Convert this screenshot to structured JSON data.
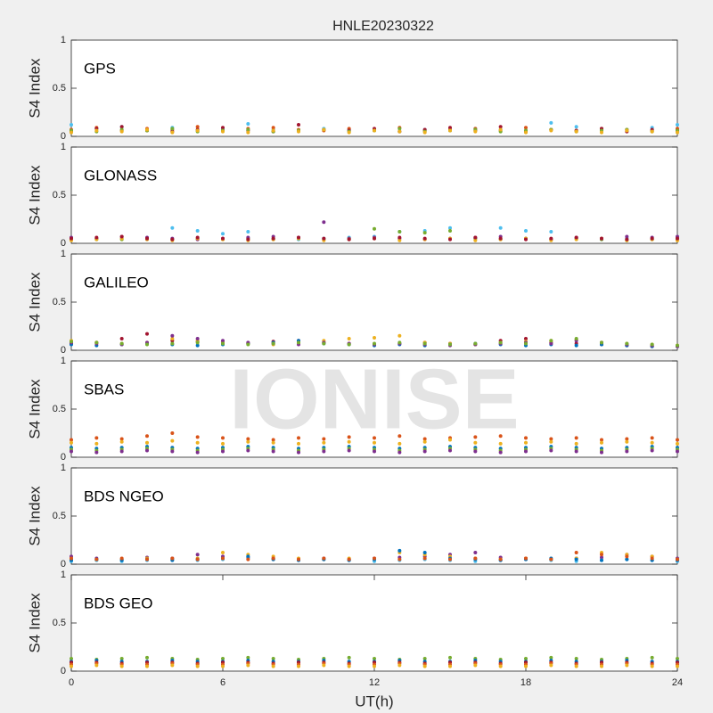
{
  "chart_data": [
    {
      "type": "scatter",
      "title": "HNLE20230322",
      "annotation": "GPS",
      "ylabel": "S4 Index",
      "x": [
        0,
        1,
        2,
        3,
        4,
        5,
        6,
        7,
        8,
        9,
        10,
        11,
        12,
        13,
        14,
        15,
        16,
        17,
        18,
        19,
        20,
        21,
        22,
        23,
        24
      ],
      "xlim": [
        0,
        24
      ],
      "ylim": [
        0,
        1
      ],
      "yticks": [
        0,
        0.5,
        1
      ],
      "series": [
        {
          "color": "#4DBEEE",
          "values": [
            0.12,
            0.08,
            0.1,
            0.07,
            0.09,
            0.06,
            0.08,
            0.13,
            0.07,
            0.06,
            0.08,
            0.07,
            0.06,
            0.05,
            0.07,
            0.06,
            0.08,
            0.07,
            0.06,
            0.14,
            0.1,
            0.08,
            0.07,
            0.09,
            0.12
          ]
        },
        {
          "color": "#D95319",
          "values": [
            0.07,
            0.09,
            0.06,
            0.08,
            0.07,
            0.1,
            0.06,
            0.08,
            0.09,
            0.07,
            0.06,
            0.08,
            0.07,
            0.09,
            0.06,
            0.07,
            0.08,
            0.06,
            0.09,
            0.07,
            0.06,
            0.08,
            0.07,
            0.06,
            0.08
          ]
        },
        {
          "color": "#A2142F",
          "values": [
            0.05,
            0.08,
            0.1,
            0.06,
            0.05,
            0.07,
            0.09,
            0.06,
            0.05,
            0.12,
            0.07,
            0.06,
            0.08,
            0.05,
            0.07,
            0.09,
            0.06,
            0.1,
            0.05,
            0.07,
            0.06,
            0.08,
            0.05,
            0.07,
            0.06
          ]
        },
        {
          "color": "#77AC30",
          "values": [
            0.06,
            0.05,
            0.07,
            0.06,
            0.08,
            0.05,
            0.06,
            0.07,
            0.05,
            0.06,
            0.07,
            0.05,
            0.06,
            0.08,
            0.05,
            0.06,
            0.07,
            0.05,
            0.06,
            0.07,
            0.05,
            0.06,
            0.07,
            0.05,
            0.06
          ]
        },
        {
          "color": "#EDB120",
          "values": [
            0.04,
            0.06,
            0.05,
            0.07,
            0.04,
            0.06,
            0.05,
            0.04,
            0.06,
            0.05,
            0.07,
            0.04,
            0.06,
            0.05,
            0.04,
            0.06,
            0.05,
            0.07,
            0.04,
            0.06,
            0.05,
            0.04,
            0.06,
            0.05,
            0.04
          ]
        }
      ]
    },
    {
      "type": "scatter",
      "annotation": "GLONASS",
      "ylabel": "S4 Index",
      "x": [
        0,
        1,
        2,
        3,
        4,
        5,
        6,
        7,
        8,
        9,
        10,
        11,
        12,
        13,
        14,
        15,
        16,
        17,
        18,
        19,
        20,
        21,
        22,
        23,
        24
      ],
      "xlim": [
        0,
        24
      ],
      "ylim": [
        0,
        1
      ],
      "yticks": [
        0,
        0.5,
        1
      ],
      "series": [
        {
          "color": "#4DBEEE",
          "values": [
            0.05,
            0.04,
            0.05,
            0.04,
            0.16,
            0.13,
            0.1,
            0.12,
            0.05,
            0.04,
            0.05,
            0.06,
            0.07,
            0.12,
            0.13,
            0.16,
            0.05,
            0.16,
            0.13,
            0.12,
            0.05,
            0.04,
            0.05,
            0.04,
            0.05
          ]
        },
        {
          "color": "#77AC30",
          "values": [
            0.04,
            0.05,
            0.04,
            0.05,
            0.04,
            0.05,
            0.04,
            0.05,
            0.04,
            0.05,
            0.04,
            0.05,
            0.15,
            0.12,
            0.11,
            0.13,
            0.05,
            0.04,
            0.05,
            0.04,
            0.05,
            0.04,
            0.03,
            0.04,
            0.05
          ]
        },
        {
          "color": "#7E2F8E",
          "values": [
            0.06,
            0.05,
            0.07,
            0.06,
            0.05,
            0.04,
            0.05,
            0.06,
            0.07,
            0.06,
            0.22,
            0.05,
            0.06,
            0.05,
            0.04,
            0.05,
            0.06,
            0.07,
            0.05,
            0.04,
            0.06,
            0.05,
            0.07,
            0.06,
            0.07
          ]
        },
        {
          "color": "#EDB120",
          "values": [
            0.03,
            0.04,
            0.05,
            0.04,
            0.03,
            0.05,
            0.04,
            0.03,
            0.04,
            0.05,
            0.03,
            0.04,
            0.05,
            0.03,
            0.04,
            0.05,
            0.03,
            0.04,
            0.05,
            0.03,
            0.04,
            0.05,
            0.03,
            0.04,
            0.03
          ]
        },
        {
          "color": "#A2142F",
          "values": [
            0.05,
            0.06,
            0.07,
            0.05,
            0.04,
            0.06,
            0.05,
            0.04,
            0.05,
            0.06,
            0.05,
            0.04,
            0.05,
            0.06,
            0.05,
            0.04,
            0.06,
            0.05,
            0.04,
            0.05,
            0.06,
            0.05,
            0.04,
            0.05,
            0.05
          ]
        }
      ]
    },
    {
      "type": "scatter",
      "annotation": "GALILEO",
      "ylabel": "S4 Index",
      "x": [
        0,
        1,
        2,
        3,
        4,
        5,
        6,
        7,
        8,
        9,
        10,
        11,
        12,
        13,
        14,
        15,
        16,
        17,
        18,
        19,
        20,
        21,
        22,
        23,
        24
      ],
      "xlim": [
        0,
        24
      ],
      "ylim": [
        0,
        1
      ],
      "yticks": [
        0,
        0.5,
        1
      ],
      "series": [
        {
          "color": "#A2142F",
          "values": [
            0.07,
            0.08,
            0.12,
            0.17,
            0.1,
            0.09,
            0.08,
            0.07,
            0.09,
            0.1,
            0.08,
            0.07,
            0.06,
            0.07,
            0.08,
            0.07,
            0.06,
            0.1,
            0.12,
            0.08,
            0.07,
            0.06,
            0.05,
            0.04,
            0.04
          ]
        },
        {
          "color": "#EDB120",
          "values": [
            0.1,
            0.08,
            0.07,
            0.08,
            0.12,
            0.1,
            0.08,
            0.07,
            0.06,
            0.08,
            0.1,
            0.12,
            0.13,
            0.15,
            0.08,
            0.07,
            0.06,
            0.08,
            0.09,
            0.1,
            0.11,
            0.08,
            0.07,
            0.06,
            0.05
          ]
        },
        {
          "color": "#0072BD",
          "values": [
            0.06,
            0.05,
            0.06,
            0.07,
            0.06,
            0.05,
            0.06,
            0.07,
            0.08,
            0.1,
            0.07,
            0.06,
            0.05,
            0.06,
            0.05,
            0.06,
            0.07,
            0.06,
            0.05,
            0.06,
            0.05,
            0.06,
            0.05,
            0.04,
            0.04
          ]
        },
        {
          "color": "#7E2F8E",
          "values": [
            0.08,
            0.07,
            0.06,
            0.08,
            0.15,
            0.12,
            0.1,
            0.08,
            0.07,
            0.06,
            0.08,
            0.07,
            0.06,
            0.07,
            0.06,
            0.05,
            0.06,
            0.07,
            0.08,
            0.07,
            0.1,
            0.08,
            0.06,
            0.05,
            0.04
          ]
        },
        {
          "color": "#77AC30",
          "values": [
            0.09,
            0.08,
            0.07,
            0.06,
            0.07,
            0.08,
            0.07,
            0.06,
            0.07,
            0.08,
            0.07,
            0.06,
            0.07,
            0.08,
            0.07,
            0.06,
            0.07,
            0.08,
            0.07,
            0.1,
            0.12,
            0.08,
            0.07,
            0.06,
            0.05
          ]
        }
      ]
    },
    {
      "type": "scatter",
      "annotation": "SBAS",
      "ylabel": "S4 Index",
      "watermark": "IONISE",
      "x": [
        0,
        1,
        2,
        3,
        4,
        5,
        6,
        7,
        8,
        9,
        10,
        11,
        12,
        13,
        14,
        15,
        16,
        17,
        18,
        19,
        20,
        21,
        22,
        23,
        24
      ],
      "xlim": [
        0,
        24
      ],
      "ylim": [
        0,
        1
      ],
      "yticks": [
        0,
        0.5,
        1
      ],
      "series": [
        {
          "color": "#D95319",
          "values": [
            0.18,
            0.2,
            0.19,
            0.22,
            0.25,
            0.21,
            0.2,
            0.19,
            0.18,
            0.2,
            0.19,
            0.21,
            0.2,
            0.22,
            0.19,
            0.2,
            0.21,
            0.22,
            0.2,
            0.19,
            0.2,
            0.18,
            0.19,
            0.2,
            0.18
          ]
        },
        {
          "color": "#EDB120",
          "values": [
            0.15,
            0.14,
            0.16,
            0.15,
            0.17,
            0.15,
            0.14,
            0.16,
            0.15,
            0.14,
            0.15,
            0.16,
            0.15,
            0.14,
            0.16,
            0.18,
            0.15,
            0.14,
            0.15,
            0.16,
            0.14,
            0.15,
            0.16,
            0.15,
            0.14
          ]
        },
        {
          "color": "#0072BD",
          "values": [
            0.1,
            0.09,
            0.1,
            0.11,
            0.1,
            0.09,
            0.1,
            0.11,
            0.1,
            0.09,
            0.1,
            0.11,
            0.1,
            0.09,
            0.1,
            0.11,
            0.1,
            0.09,
            0.1,
            0.11,
            0.1,
            0.09,
            0.1,
            0.11,
            0.1
          ]
        },
        {
          "color": "#77AC30",
          "values": [
            0.08,
            0.07,
            0.08,
            0.09,
            0.08,
            0.07,
            0.08,
            0.09,
            0.08,
            0.07,
            0.08,
            0.09,
            0.08,
            0.07,
            0.08,
            0.09,
            0.08,
            0.07,
            0.08,
            0.09,
            0.08,
            0.07,
            0.08,
            0.09,
            0.08
          ]
        },
        {
          "color": "#7E2F8E",
          "values": [
            0.06,
            0.05,
            0.06,
            0.07,
            0.06,
            0.05,
            0.06,
            0.07,
            0.06,
            0.05,
            0.06,
            0.07,
            0.06,
            0.05,
            0.06,
            0.07,
            0.06,
            0.05,
            0.06,
            0.07,
            0.06,
            0.05,
            0.06,
            0.07,
            0.06
          ]
        }
      ]
    },
    {
      "type": "scatter",
      "annotation": "BDS NGEO",
      "ylabel": "S4 Index",
      "x": [
        0,
        1,
        2,
        3,
        4,
        5,
        6,
        7,
        8,
        9,
        10,
        11,
        12,
        13,
        14,
        15,
        16,
        17,
        18,
        19,
        20,
        21,
        22,
        23,
        24
      ],
      "xlim": [
        0,
        24
      ],
      "ylim": [
        0,
        1
      ],
      "yticks": [
        0,
        0.5,
        1
      ],
      "series": [
        {
          "color": "#7E2F8E",
          "values": [
            0.08,
            0.06,
            0.05,
            0.07,
            0.06,
            0.1,
            0.08,
            0.07,
            0.06,
            0.05,
            0.06,
            0.05,
            0.06,
            0.07,
            0.08,
            0.1,
            0.12,
            0.07,
            0.06,
            0.05,
            0.06,
            0.07,
            0.1,
            0.08,
            0.06
          ]
        },
        {
          "color": "#EDB120",
          "values": [
            0.05,
            0.04,
            0.05,
            0.06,
            0.05,
            0.06,
            0.12,
            0.1,
            0.08,
            0.06,
            0.05,
            0.06,
            0.05,
            0.12,
            0.1,
            0.08,
            0.06,
            0.05,
            0.06,
            0.05,
            0.06,
            0.12,
            0.1,
            0.08,
            0.05
          ]
        },
        {
          "color": "#4DBEEE",
          "values": [
            0.03,
            0.04,
            0.03,
            0.04,
            0.05,
            0.04,
            0.05,
            0.06,
            0.05,
            0.04,
            0.05,
            0.04,
            0.03,
            0.04,
            0.05,
            0.04,
            0.03,
            0.04,
            0.05,
            0.04,
            0.03,
            0.04,
            0.05,
            0.04,
            0.03
          ]
        },
        {
          "color": "#0072BD",
          "values": [
            0.04,
            0.05,
            0.04,
            0.05,
            0.04,
            0.05,
            0.06,
            0.08,
            0.05,
            0.04,
            0.05,
            0.04,
            0.05,
            0.14,
            0.12,
            0.06,
            0.05,
            0.04,
            0.05,
            0.06,
            0.05,
            0.04,
            0.05,
            0.04,
            0.04
          ]
        },
        {
          "color": "#D95319",
          "values": [
            0.06,
            0.05,
            0.06,
            0.05,
            0.06,
            0.05,
            0.06,
            0.05,
            0.06,
            0.05,
            0.06,
            0.05,
            0.06,
            0.05,
            0.06,
            0.05,
            0.06,
            0.05,
            0.06,
            0.05,
            0.12,
            0.1,
            0.08,
            0.06,
            0.05
          ]
        }
      ]
    },
    {
      "type": "scatter",
      "annotation": "BDS GEO",
      "ylabel": "S4 Index",
      "xlabel": "UT(h)",
      "x": [
        0,
        1,
        2,
        3,
        4,
        5,
        6,
        7,
        8,
        9,
        10,
        11,
        12,
        13,
        14,
        15,
        16,
        17,
        18,
        19,
        20,
        21,
        22,
        23,
        24
      ],
      "xlim": [
        0,
        24
      ],
      "ylim": [
        0,
        1
      ],
      "yticks": [
        0,
        0.5,
        1
      ],
      "xticks": [
        0,
        6,
        12,
        18,
        24
      ],
      "series": [
        {
          "color": "#77AC30",
          "values": [
            0.13,
            0.12,
            0.13,
            0.14,
            0.13,
            0.12,
            0.13,
            0.14,
            0.13,
            0.12,
            0.13,
            0.14,
            0.13,
            0.12,
            0.13,
            0.14,
            0.13,
            0.12,
            0.13,
            0.14,
            0.13,
            0.12,
            0.13,
            0.14,
            0.13
          ]
        },
        {
          "color": "#0072BD",
          "values": [
            0.1,
            0.11,
            0.1,
            0.1,
            0.11,
            0.1,
            0.1,
            0.11,
            0.1,
            0.1,
            0.11,
            0.1,
            0.1,
            0.11,
            0.1,
            0.1,
            0.11,
            0.1,
            0.1,
            0.11,
            0.1,
            0.1,
            0.11,
            0.1,
            0.1
          ]
        },
        {
          "color": "#A2142F",
          "values": [
            0.09,
            0.09,
            0.08,
            0.09,
            0.09,
            0.08,
            0.09,
            0.09,
            0.08,
            0.09,
            0.09,
            0.08,
            0.09,
            0.09,
            0.08,
            0.09,
            0.09,
            0.08,
            0.09,
            0.09,
            0.08,
            0.09,
            0.09,
            0.08,
            0.09
          ]
        },
        {
          "color": "#D95319",
          "values": [
            0.07,
            0.08,
            0.07,
            0.07,
            0.08,
            0.07,
            0.07,
            0.08,
            0.07,
            0.07,
            0.08,
            0.07,
            0.07,
            0.08,
            0.07,
            0.07,
            0.08,
            0.07,
            0.07,
            0.08,
            0.07,
            0.07,
            0.08,
            0.07,
            0.07
          ]
        },
        {
          "color": "#EDB120",
          "values": [
            0.05,
            0.06,
            0.05,
            0.05,
            0.06,
            0.05,
            0.05,
            0.06,
            0.05,
            0.05,
            0.06,
            0.05,
            0.05,
            0.06,
            0.05,
            0.05,
            0.06,
            0.05,
            0.05,
            0.06,
            0.05,
            0.05,
            0.06,
            0.05,
            0.05
          ]
        }
      ]
    }
  ]
}
